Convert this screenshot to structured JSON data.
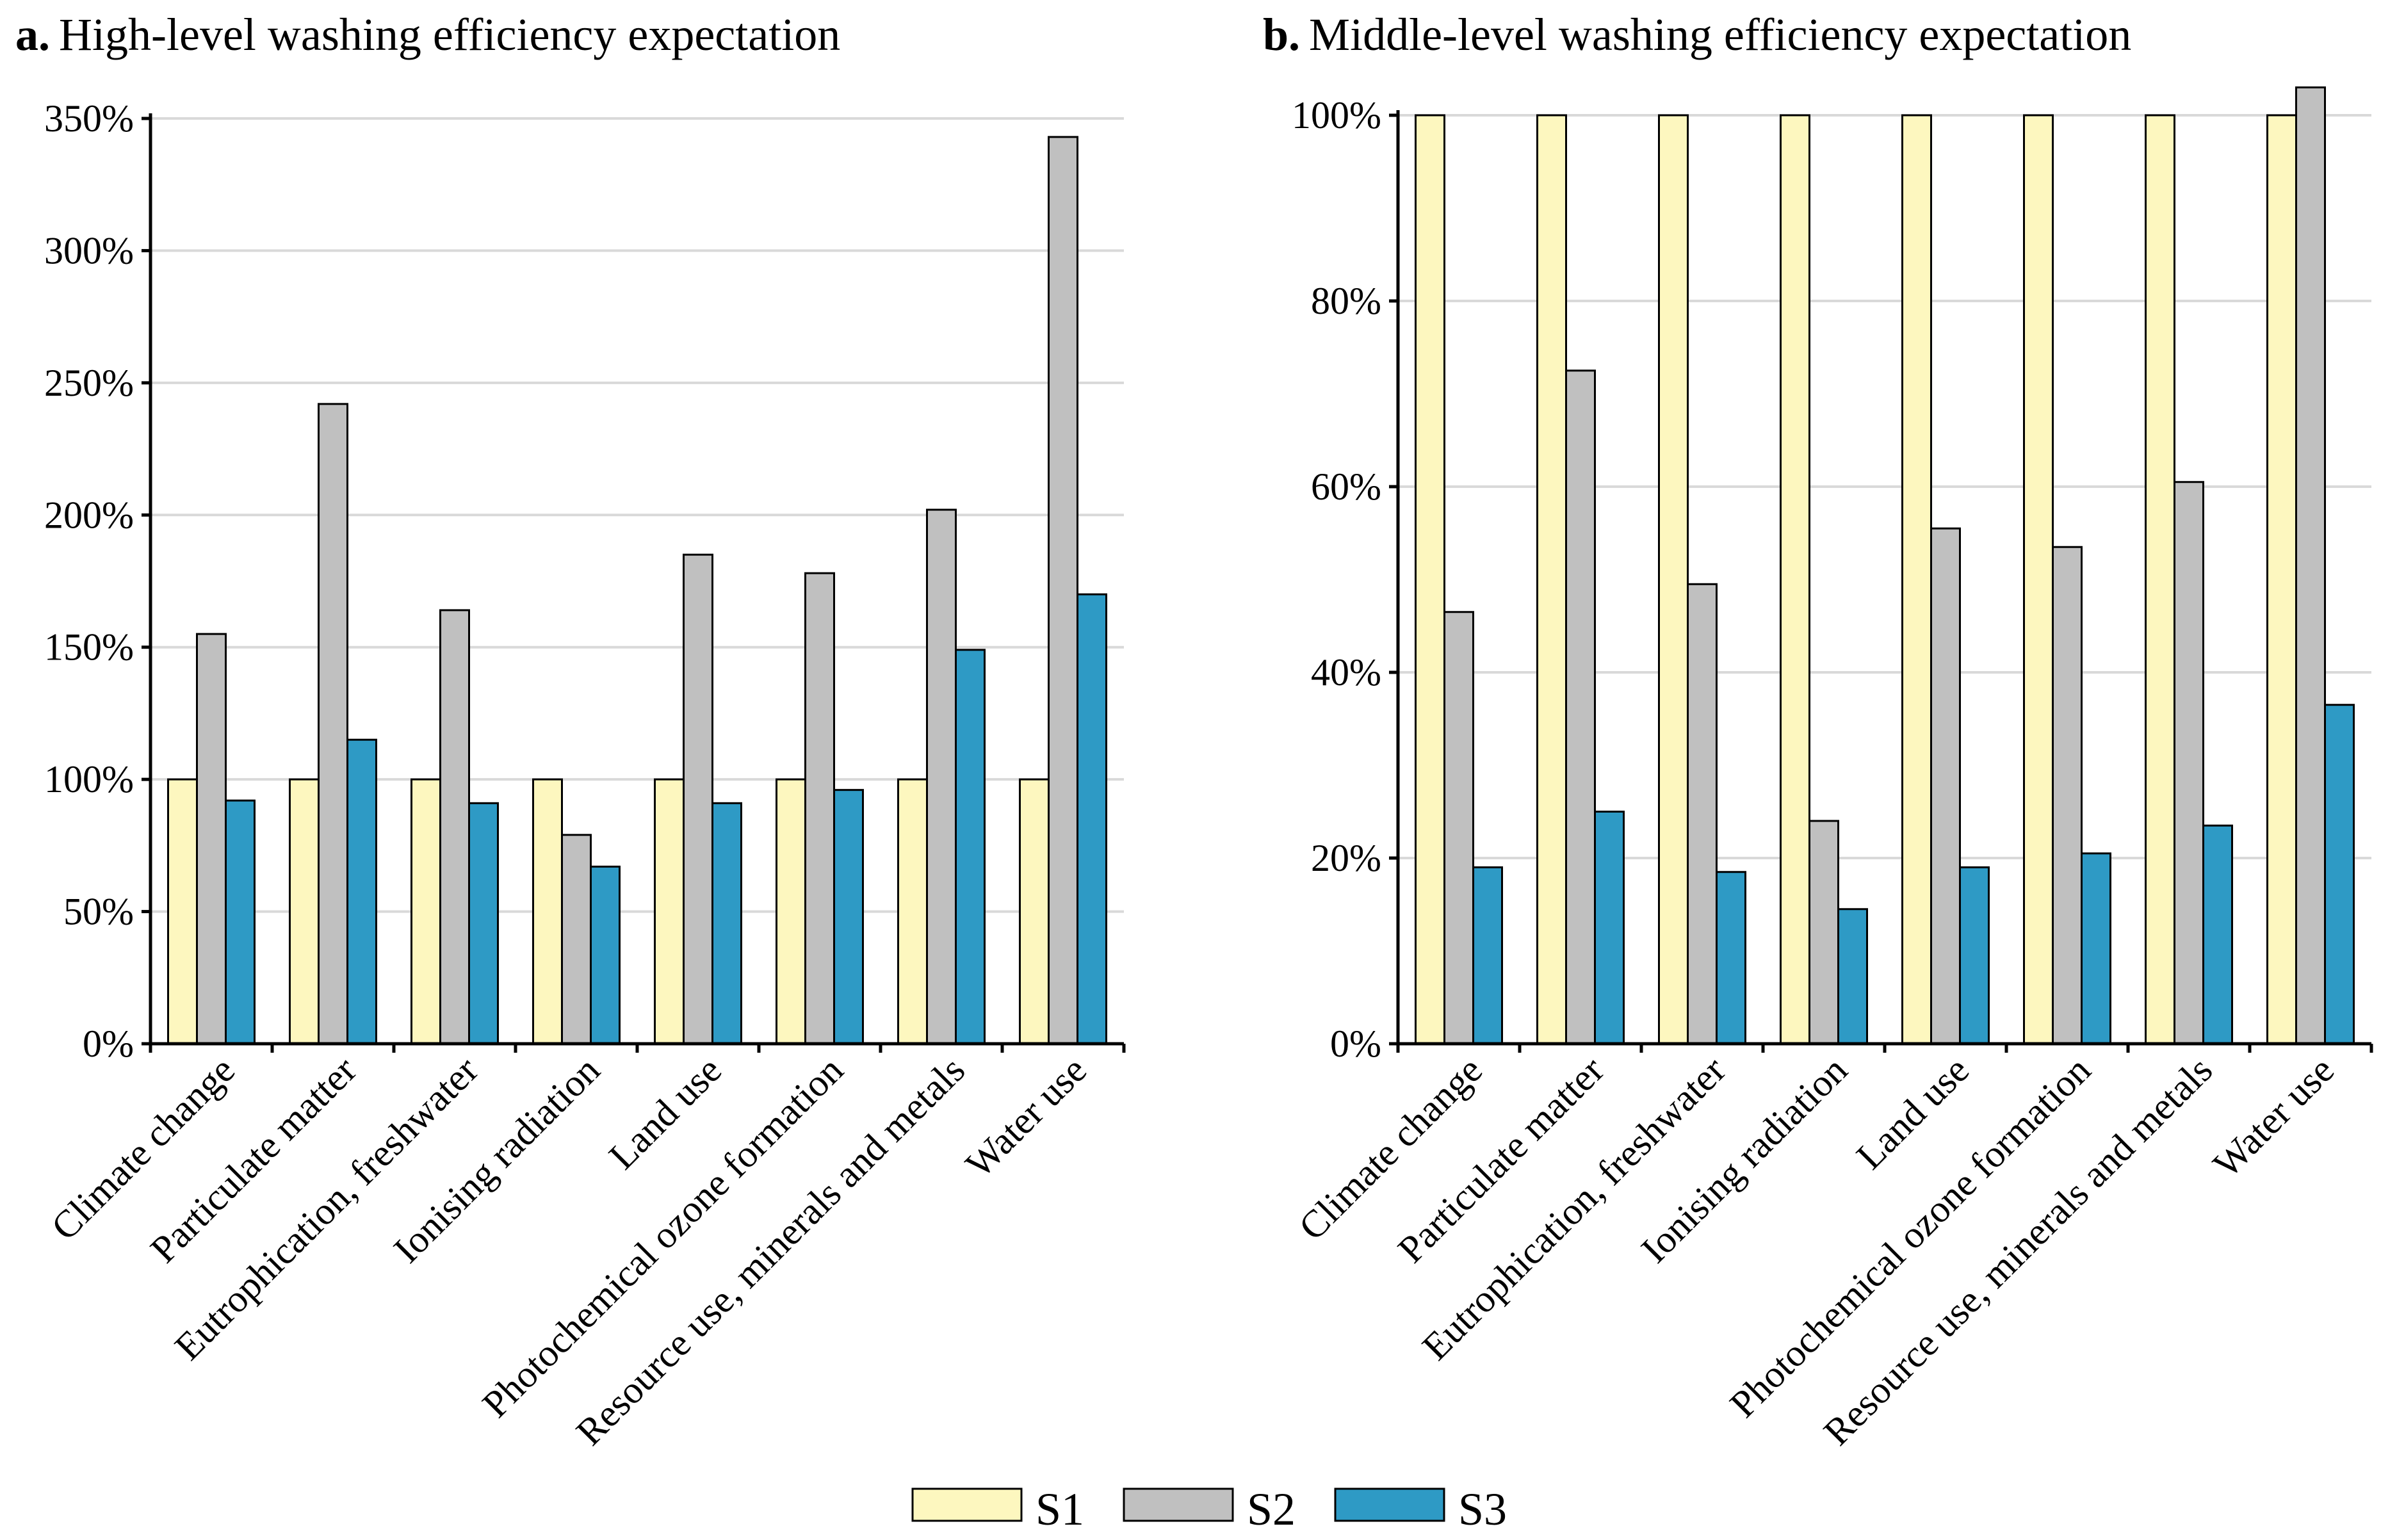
{
  "legend": {
    "series": [
      {
        "name": "S1",
        "color": "#fdf7bf"
      },
      {
        "name": "S2",
        "color": "#c0c0c0"
      },
      {
        "name": "S3",
        "color": "#2e9ac5"
      }
    ]
  },
  "chart_data": [
    {
      "type": "bar",
      "panel": "a.",
      "title": "High-level washing efficiency expectation",
      "xlabel": "",
      "ylabel": "",
      "ylim": [
        0,
        350
      ],
      "yticks": [
        0,
        50,
        100,
        150,
        200,
        250,
        300,
        350
      ],
      "ytick_labels": [
        "0%",
        "50%",
        "100%",
        "150%",
        "200%",
        "250%",
        "300%",
        "350%"
      ],
      "grid": true,
      "categories": [
        "Climate change",
        "Particulate matter",
        "Eutrophication, freshwater",
        "Ionising radiation",
        "Land use",
        "Photochemical ozone formation",
        "Resource use, minerals and metals",
        "Water use"
      ],
      "series": [
        {
          "name": "S1",
          "values": [
            100,
            100,
            100,
            100,
            100,
            100,
            100,
            100
          ]
        },
        {
          "name": "S2",
          "values": [
            155,
            242,
            164,
            79,
            185,
            178,
            202,
            343
          ]
        },
        {
          "name": "S3",
          "values": [
            92,
            115,
            91,
            67,
            91,
            96,
            149,
            170
          ]
        }
      ]
    },
    {
      "type": "bar",
      "panel": "b.",
      "title": "Middle-level washing efficiency expectation",
      "xlabel": "",
      "ylabel": "",
      "ylim": [
        0,
        100
      ],
      "yticks": [
        0,
        20,
        40,
        60,
        80,
        100
      ],
      "ytick_labels": [
        "0%",
        "20%",
        "40%",
        "60%",
        "80%",
        "100%"
      ],
      "grid": true,
      "categories": [
        "Climate change",
        "Particulate matter",
        "Eutrophication, freshwater",
        "Ionising radiation",
        "Land use",
        "Photochemical ozone formation",
        "Resource use, minerals and metals",
        "Water use"
      ],
      "series": [
        {
          "name": "S1",
          "values": [
            100,
            100,
            100,
            100,
            100,
            100,
            100,
            100
          ]
        },
        {
          "name": "S2",
          "values": [
            46.5,
            72.5,
            49.5,
            24,
            55.5,
            53.5,
            60.5,
            103
          ]
        },
        {
          "name": "S3",
          "values": [
            19,
            25,
            18.5,
            14.5,
            19,
            20.5,
            23.5,
            36.5
          ]
        }
      ]
    }
  ]
}
